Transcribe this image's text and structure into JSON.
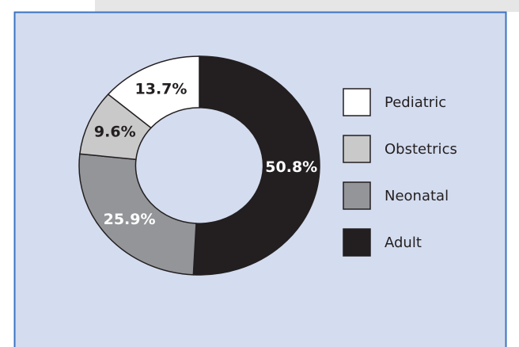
{
  "chart_data": {
    "type": "donut",
    "categories": [
      "Pediatric",
      "Obstetrics",
      "Neonatal",
      "Adult"
    ],
    "values": [
      13.7,
      9.6,
      25.9,
      50.8
    ],
    "value_labels": [
      "13.7%",
      "9.6%",
      "25.9%",
      "50.8%"
    ],
    "colors": [
      "#ffffff",
      "#c9c9c9",
      "#939598",
      "#231f20"
    ],
    "legend": "right"
  }
}
